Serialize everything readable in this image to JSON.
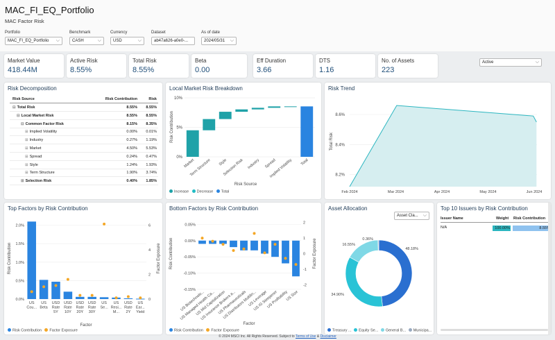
{
  "header": {
    "title": "MAC_FI_EQ_Portfolio",
    "subtitle": "MAC Factor Risk",
    "controls": [
      {
        "label": "Portfolio",
        "value": "MAC_FI_EQ_Portfolio"
      },
      {
        "label": "Benchmark",
        "value": "CASH"
      },
      {
        "label": "Currency",
        "value": "USD"
      },
      {
        "label": "Dataset",
        "value": "ab47a626-a0e0-..."
      },
      {
        "label": "As of date",
        "value": "2024/05/31"
      }
    ],
    "view_selector": "Active"
  },
  "kpis": [
    {
      "label": "Market Value",
      "value": "418.44M"
    },
    {
      "label": "Active Risk",
      "value": "8.55%"
    },
    {
      "label": "Total Risk",
      "value": "8.55%"
    },
    {
      "label": "Beta",
      "value": "0.00"
    },
    {
      "label": "Eff Duration",
      "value": "3.66"
    },
    {
      "label": "DTS",
      "value": "1.16"
    },
    {
      "label": "No. of Assets",
      "value": "223"
    }
  ],
  "risk_decomposition": {
    "title": "Risk Decomposition",
    "columns": [
      "Risk Source",
      "Risk Contribution",
      "Risk"
    ],
    "rows": [
      {
        "name": "Total Risk",
        "contribution": "8.55%",
        "risk": "8.55%",
        "level": 0,
        "bold": true,
        "expander": "⊟"
      },
      {
        "name": "Local Market Risk",
        "contribution": "8.55%",
        "risk": "8.55%",
        "level": 1,
        "bold": true,
        "expander": "⊟"
      },
      {
        "name": "Common Factor Risk",
        "contribution": "8.15%",
        "risk": "8.35%",
        "level": 2,
        "bold": true,
        "expander": "⊟"
      },
      {
        "name": "Implied Volatility",
        "contribution": "0.00%",
        "risk": "0.01%",
        "level": 3,
        "bold": false,
        "expander": "⊞"
      },
      {
        "name": "Industry",
        "contribution": "0.27%",
        "risk": "1.19%",
        "level": 3,
        "bold": false,
        "expander": "⊞"
      },
      {
        "name": "Market",
        "contribution": "4.50%",
        "risk": "5.53%",
        "level": 3,
        "bold": false,
        "expander": "⊞"
      },
      {
        "name": "Spread",
        "contribution": "0.24%",
        "risk": "0.47%",
        "level": 3,
        "bold": false,
        "expander": "⊞"
      },
      {
        "name": "Style",
        "contribution": "1.24%",
        "risk": "1.93%",
        "level": 3,
        "bold": false,
        "expander": "⊞"
      },
      {
        "name": "Term Structure",
        "contribution": "1.90%",
        "risk": "3.74%",
        "level": 3,
        "bold": false,
        "expander": "⊞"
      },
      {
        "name": "Selection Risk",
        "contribution": "0.40%",
        "risk": "1.85%",
        "level": 2,
        "bold": true,
        "expander": "⊞"
      }
    ]
  },
  "charts": {
    "waterfall": {
      "title": "Local Market Risk Breakdown",
      "xlabel": "Risk Source",
      "ylabel": "Risk Contribution",
      "yticks": [
        "0%",
        "5%",
        "10%"
      ],
      "legend": [
        "Increase",
        "Decrease",
        "Total"
      ],
      "colors": {
        "increase": "#1fa2a8",
        "decrease": "#22bcc4",
        "total": "#2a84e0"
      }
    },
    "trend": {
      "title": "Risk Trend",
      "ylabel": "Total Risk",
      "yticks": [
        "8.2%",
        "8.4%",
        "8.6%"
      ],
      "xticks": [
        "Feb 2024",
        "Mar 2024",
        "Apr 2024",
        "May 2024",
        "Jun 2024"
      ],
      "fill": "#d6eef0",
      "line": "#2bb6c0"
    },
    "top_factors": {
      "title": "Top Factors by Risk Contribution",
      "xlabel": "Factor",
      "ylabel_left": "Risk Contribution",
      "ylabel_right": "Factor Exposure",
      "yticks_left": [
        "0.0%",
        "0.5%",
        "1.0%",
        "1.5%",
        "2.0%"
      ],
      "yticks_right": [
        "0",
        "2",
        "4",
        "6"
      ],
      "categories": [
        [
          "US",
          "Cou..."
        ],
        [
          "US",
          "Beta"
        ],
        [
          "USD",
          "Rate",
          "5Y"
        ],
        [
          "USD",
          "Rate",
          "10Y"
        ],
        [
          "USD",
          "Rate",
          "20Y"
        ],
        [
          "USD",
          "Rate",
          "30Y"
        ],
        [
          "US",
          "Se..."
        ],
        [
          "US",
          "Resi...",
          "M..."
        ],
        [
          "USD",
          "Rate",
          "2Y"
        ],
        [
          "US",
          "Ear...",
          "Yield"
        ]
      ],
      "legend": [
        "Risk Contribution",
        "Factor Exposure"
      ],
      "colors": {
        "bar": "#2a84e0",
        "dot": "#f4a726"
      }
    },
    "bottom_factors": {
      "title": "Bottom Factors by Risk Contribution",
      "xlabel": "Factor",
      "ylabel_left": "Risk Contribution",
      "ylabel_right": "Factor Exposure",
      "yticks_left": [
        "0.05%",
        "0.00%",
        "-0.05%",
        "-0.10%",
        "-0.15%"
      ],
      "yticks_right": [
        "2",
        "1",
        "0",
        "-1",
        "-2"
      ],
      "categories": [
        "US Biotechnolo...",
        "US Managed Health Ca...",
        "US Mid Capitalization",
        "US Insurance Brokers a...",
        "US Pharmaceuticals",
        "US Distributors Multilin...",
        "US Leverage",
        "US IG Steepener",
        "US Profitability",
        "US Size"
      ],
      "legend": [
        "Risk Contribution",
        "Factor Exposure"
      ]
    },
    "allocation": {
      "title": "Asset Allocation",
      "dropdown": "Asset Cla...",
      "labels": [
        "0.36%",
        "16.55%",
        "34.90%",
        "48.18%"
      ],
      "legend": [
        "Treasury ...",
        "Equity Se...",
        "General B...",
        "Municipa..."
      ],
      "colors": [
        "#2a6fd0",
        "#29c3d6",
        "#7fd8e6",
        "#98a9c0"
      ]
    }
  },
  "chart_data": [
    {
      "type": "bar",
      "title": "Local Market Risk Breakdown",
      "subtype": "waterfall",
      "xlabel": "Risk Source",
      "ylabel": "Risk Contribution",
      "categories": [
        "Market",
        "Term Structure",
        "Style",
        "Selection Risk",
        "Industry",
        "Spread",
        "Implied Volatility",
        "Total"
      ],
      "values": [
        4.5,
        1.9,
        1.24,
        0.4,
        0.27,
        0.24,
        0.0,
        8.55
      ],
      "ylim": [
        0,
        10
      ]
    },
    {
      "type": "area",
      "title": "Risk Trend",
      "ylabel": "Total Risk",
      "x": [
        "Feb 2024",
        "Mar 2024",
        "Jun 2024 (start)",
        "Jun 2024"
      ],
      "x_pos": [
        0,
        1.02,
        3.98,
        4.05
      ],
      "values": [
        8.12,
        8.66,
        8.59,
        8.55
      ],
      "ylim": [
        8.12,
        8.72
      ]
    },
    {
      "type": "bar",
      "title": "Top Factors by Risk Contribution",
      "xlabel": "Factor",
      "categories": [
        "US Cou...",
        "US Beta",
        "USD Rate 5Y",
        "USD Rate 10Y",
        "USD Rate 20Y",
        "USD Rate 30Y",
        "US Se...",
        "US Resi... M...",
        "USD Rate 2Y",
        "US Ear... Yield"
      ],
      "series": [
        {
          "name": "Risk Contribution",
          "values": [
            2.1,
            0.52,
            0.47,
            0.2,
            0.06,
            0.06,
            0.05,
            0.04,
            0.02,
            0.01
          ]
        },
        {
          "name": "Factor Exposure",
          "values": [
            0.6,
            1.0,
            1.1,
            1.6,
            0.3,
            0.3,
            6.1,
            0.1,
            0.2,
            0.1
          ]
        }
      ],
      "ylim_left": [
        0,
        2.2
      ],
      "ylim_right": [
        0,
        6.6
      ]
    },
    {
      "type": "bar",
      "title": "Bottom Factors by Risk Contribution",
      "xlabel": "Factor",
      "categories": [
        "US Biotechnolo...",
        "US Managed Health Ca...",
        "US Mid Capitalization",
        "US Insurance Brokers a...",
        "US Pharmaceuticals",
        "US Distributors Multilin...",
        "US Leverage",
        "US IG Steepener",
        "US Profitability",
        "US Size"
      ],
      "series": [
        {
          "name": "Risk Contribution",
          "values": [
            -0.01,
            -0.01,
            -0.01,
            -0.02,
            -0.03,
            -0.03,
            -0.04,
            -0.05,
            -0.07,
            -0.11
          ]
        },
        {
          "name": "Factor Exposure",
          "values": [
            1.0,
            0.8,
            0.6,
            0.2,
            0.3,
            1.3,
            0.05,
            0.6,
            -0.3,
            -0.7
          ]
        }
      ],
      "ylim_left": [
        -0.15,
        0.07
      ],
      "ylim_right": [
        -2.3,
        2.3
      ]
    },
    {
      "type": "pie",
      "title": "Asset Allocation",
      "categories": [
        "Treasury ...",
        "Equity Se...",
        "General B...",
        "Municipa..."
      ],
      "values": [
        48.18,
        34.9,
        16.55,
        0.36
      ]
    }
  ],
  "issuers": {
    "title": "Top 10 Issuers by Risk Contribution",
    "columns": [
      "Issuer Name",
      "Weight",
      "Risk Contribution"
    ],
    "rows": [
      {
        "name": "N/A",
        "weight": "100.00%",
        "contribution": "8.55%"
      }
    ]
  },
  "footer": {
    "text": "© 2024 MSCI Inc. All Rights Reserved. Subject to",
    "link1": "Terms of Use",
    "amp": "&",
    "link2": "Disclaimer"
  }
}
